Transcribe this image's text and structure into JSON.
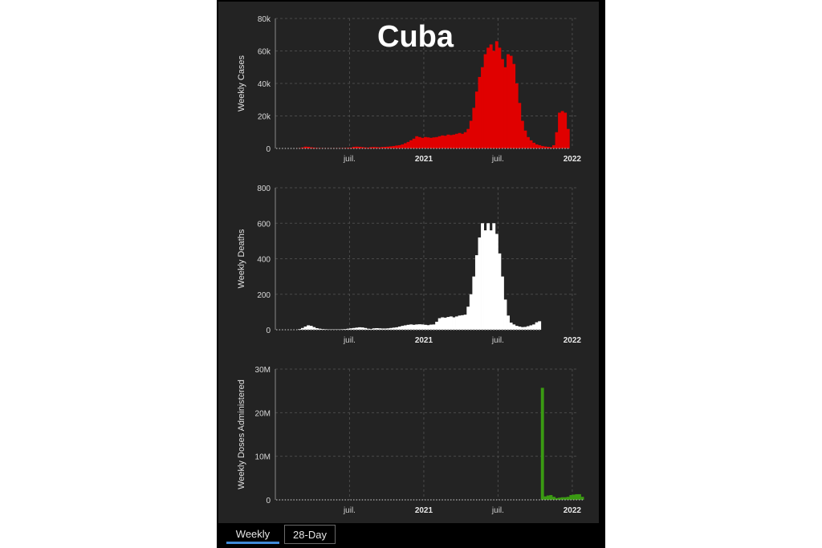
{
  "title": "Cuba",
  "tabs": [
    {
      "label": "Weekly",
      "active": true
    },
    {
      "label": "28-Day",
      "active": false
    }
  ],
  "colors": {
    "background": "#232323",
    "cases": "#e00000",
    "deaths": "#ffffff",
    "doses": "#3a9a12",
    "grid": "#4a4a4a",
    "tab_active": "#3f8ad8"
  },
  "chart_data": [
    {
      "type": "bar",
      "ylabel": "Weekly Cases",
      "xlabel": "",
      "ylim": [
        0,
        80000
      ],
      "y_ticks": [
        {
          "v": 0,
          "label": "0"
        },
        {
          "v": 20000,
          "label": "20k"
        },
        {
          "v": 40000,
          "label": "40k"
        },
        {
          "v": 60000,
          "label": "60k"
        },
        {
          "v": 80000,
          "label": "80k"
        }
      ],
      "x_ticks": [
        {
          "week": 26,
          "label": "juil.",
          "bold": false
        },
        {
          "week": 52,
          "label": "2021",
          "bold": true
        },
        {
          "week": 78,
          "label": "juil.",
          "bold": false
        },
        {
          "week": 104,
          "label": "2022",
          "bold": true
        }
      ],
      "grid": true,
      "x_start": "2020-01",
      "x_end": "2022-01",
      "values": [
        0,
        0,
        0,
        0,
        0,
        0,
        0,
        30,
        200,
        600,
        1100,
        1000,
        700,
        500,
        300,
        200,
        150,
        100,
        80,
        80,
        80,
        100,
        150,
        200,
        300,
        400,
        500,
        1000,
        1100,
        1000,
        800,
        600,
        500,
        800,
        900,
        800,
        700,
        900,
        1000,
        1100,
        1300,
        1500,
        1800,
        2000,
        2500,
        3200,
        4000,
        5000,
        6000,
        7500,
        7000,
        6500,
        7000,
        6800,
        6500,
        6800,
        7000,
        7500,
        8000,
        7800,
        8500,
        8200,
        8500,
        9000,
        9500,
        9000,
        10000,
        12000,
        17000,
        25000,
        35000,
        44000,
        50000,
        58000,
        62000,
        64000,
        60000,
        66000,
        62000,
        55000,
        50000,
        58000,
        57000,
        52000,
        40000,
        28000,
        17000,
        11000,
        7000,
        5000,
        3500,
        2500,
        2000,
        1500,
        1200,
        1000,
        800,
        2000,
        10000,
        22000,
        23000,
        22000,
        12000
      ]
    },
    {
      "type": "bar",
      "ylabel": "Weekly Deaths",
      "xlabel": "",
      "ylim": [
        0,
        800
      ],
      "y_ticks": [
        {
          "v": 0,
          "label": "0"
        },
        {
          "v": 200,
          "label": "200"
        },
        {
          "v": 400,
          "label": "400"
        },
        {
          "v": 600,
          "label": "600"
        },
        {
          "v": 800,
          "label": "800"
        }
      ],
      "x_ticks": [
        {
          "week": 26,
          "label": "juil.",
          "bold": false
        },
        {
          "week": 52,
          "label": "2021",
          "bold": true
        },
        {
          "week": 78,
          "label": "juil.",
          "bold": false
        },
        {
          "week": 104,
          "label": "2022",
          "bold": true
        }
      ],
      "grid": true,
      "x_start": "2020-01",
      "x_end": "2022-01",
      "values": [
        0,
        0,
        0,
        0,
        0,
        0,
        0,
        0,
        4,
        10,
        18,
        25,
        22,
        15,
        9,
        6,
        4,
        3,
        2,
        2,
        2,
        2,
        2,
        3,
        4,
        6,
        8,
        10,
        12,
        14,
        13,
        10,
        6,
        5,
        8,
        9,
        8,
        7,
        7,
        8,
        10,
        12,
        14,
        18,
        22,
        25,
        28,
        30,
        28,
        30,
        31,
        30,
        28,
        26,
        29,
        30,
        45,
        65,
        70,
        68,
        72,
        75,
        70,
        75,
        80,
        82,
        85,
        130,
        200,
        300,
        420,
        520,
        600,
        560,
        600,
        560,
        600,
        540,
        430,
        300,
        170,
        80,
        40,
        30,
        22,
        18,
        15,
        16,
        20,
        25,
        30,
        42,
        48
      ]
    },
    {
      "type": "bar",
      "ylabel": "Weekly Doses Administered",
      "xlabel": "",
      "ylim": [
        0,
        30000000
      ],
      "y_ticks": [
        {
          "v": 0,
          "label": "0"
        },
        {
          "v": 10000000,
          "label": "10M"
        },
        {
          "v": 20000000,
          "label": "20M"
        },
        {
          "v": 30000000,
          "label": "30M"
        }
      ],
      "x_ticks": [
        {
          "week": 26,
          "label": "juil.",
          "bold": false
        },
        {
          "week": 52,
          "label": "2021",
          "bold": true
        },
        {
          "week": 78,
          "label": "juil.",
          "bold": false
        },
        {
          "week": 104,
          "label": "2022",
          "bold": true
        }
      ],
      "grid": true,
      "x_start": "2020-01",
      "x_end": "2022-01",
      "values": [
        0,
        0,
        0,
        0,
        0,
        0,
        0,
        0,
        0,
        0,
        0,
        0,
        0,
        0,
        0,
        0,
        0,
        0,
        0,
        0,
        0,
        0,
        0,
        0,
        0,
        0,
        0,
        0,
        0,
        0,
        0,
        0,
        0,
        0,
        0,
        0,
        0,
        0,
        0,
        0,
        0,
        0,
        0,
        0,
        0,
        0,
        0,
        0,
        0,
        0,
        0,
        0,
        0,
        0,
        0,
        0,
        0,
        0,
        0,
        0,
        0,
        0,
        0,
        0,
        0,
        0,
        0,
        0,
        0,
        0,
        0,
        0,
        0,
        0,
        0,
        0,
        0,
        0,
        0,
        0,
        0,
        0,
        0,
        0,
        0,
        0,
        0,
        0,
        0,
        0,
        0,
        0,
        0,
        25700000,
        800000,
        1000000,
        1100000,
        700000,
        400000,
        500000,
        600000,
        600000,
        700000,
        1100000,
        1200000,
        1300000,
        1300000,
        700000
      ]
    }
  ]
}
